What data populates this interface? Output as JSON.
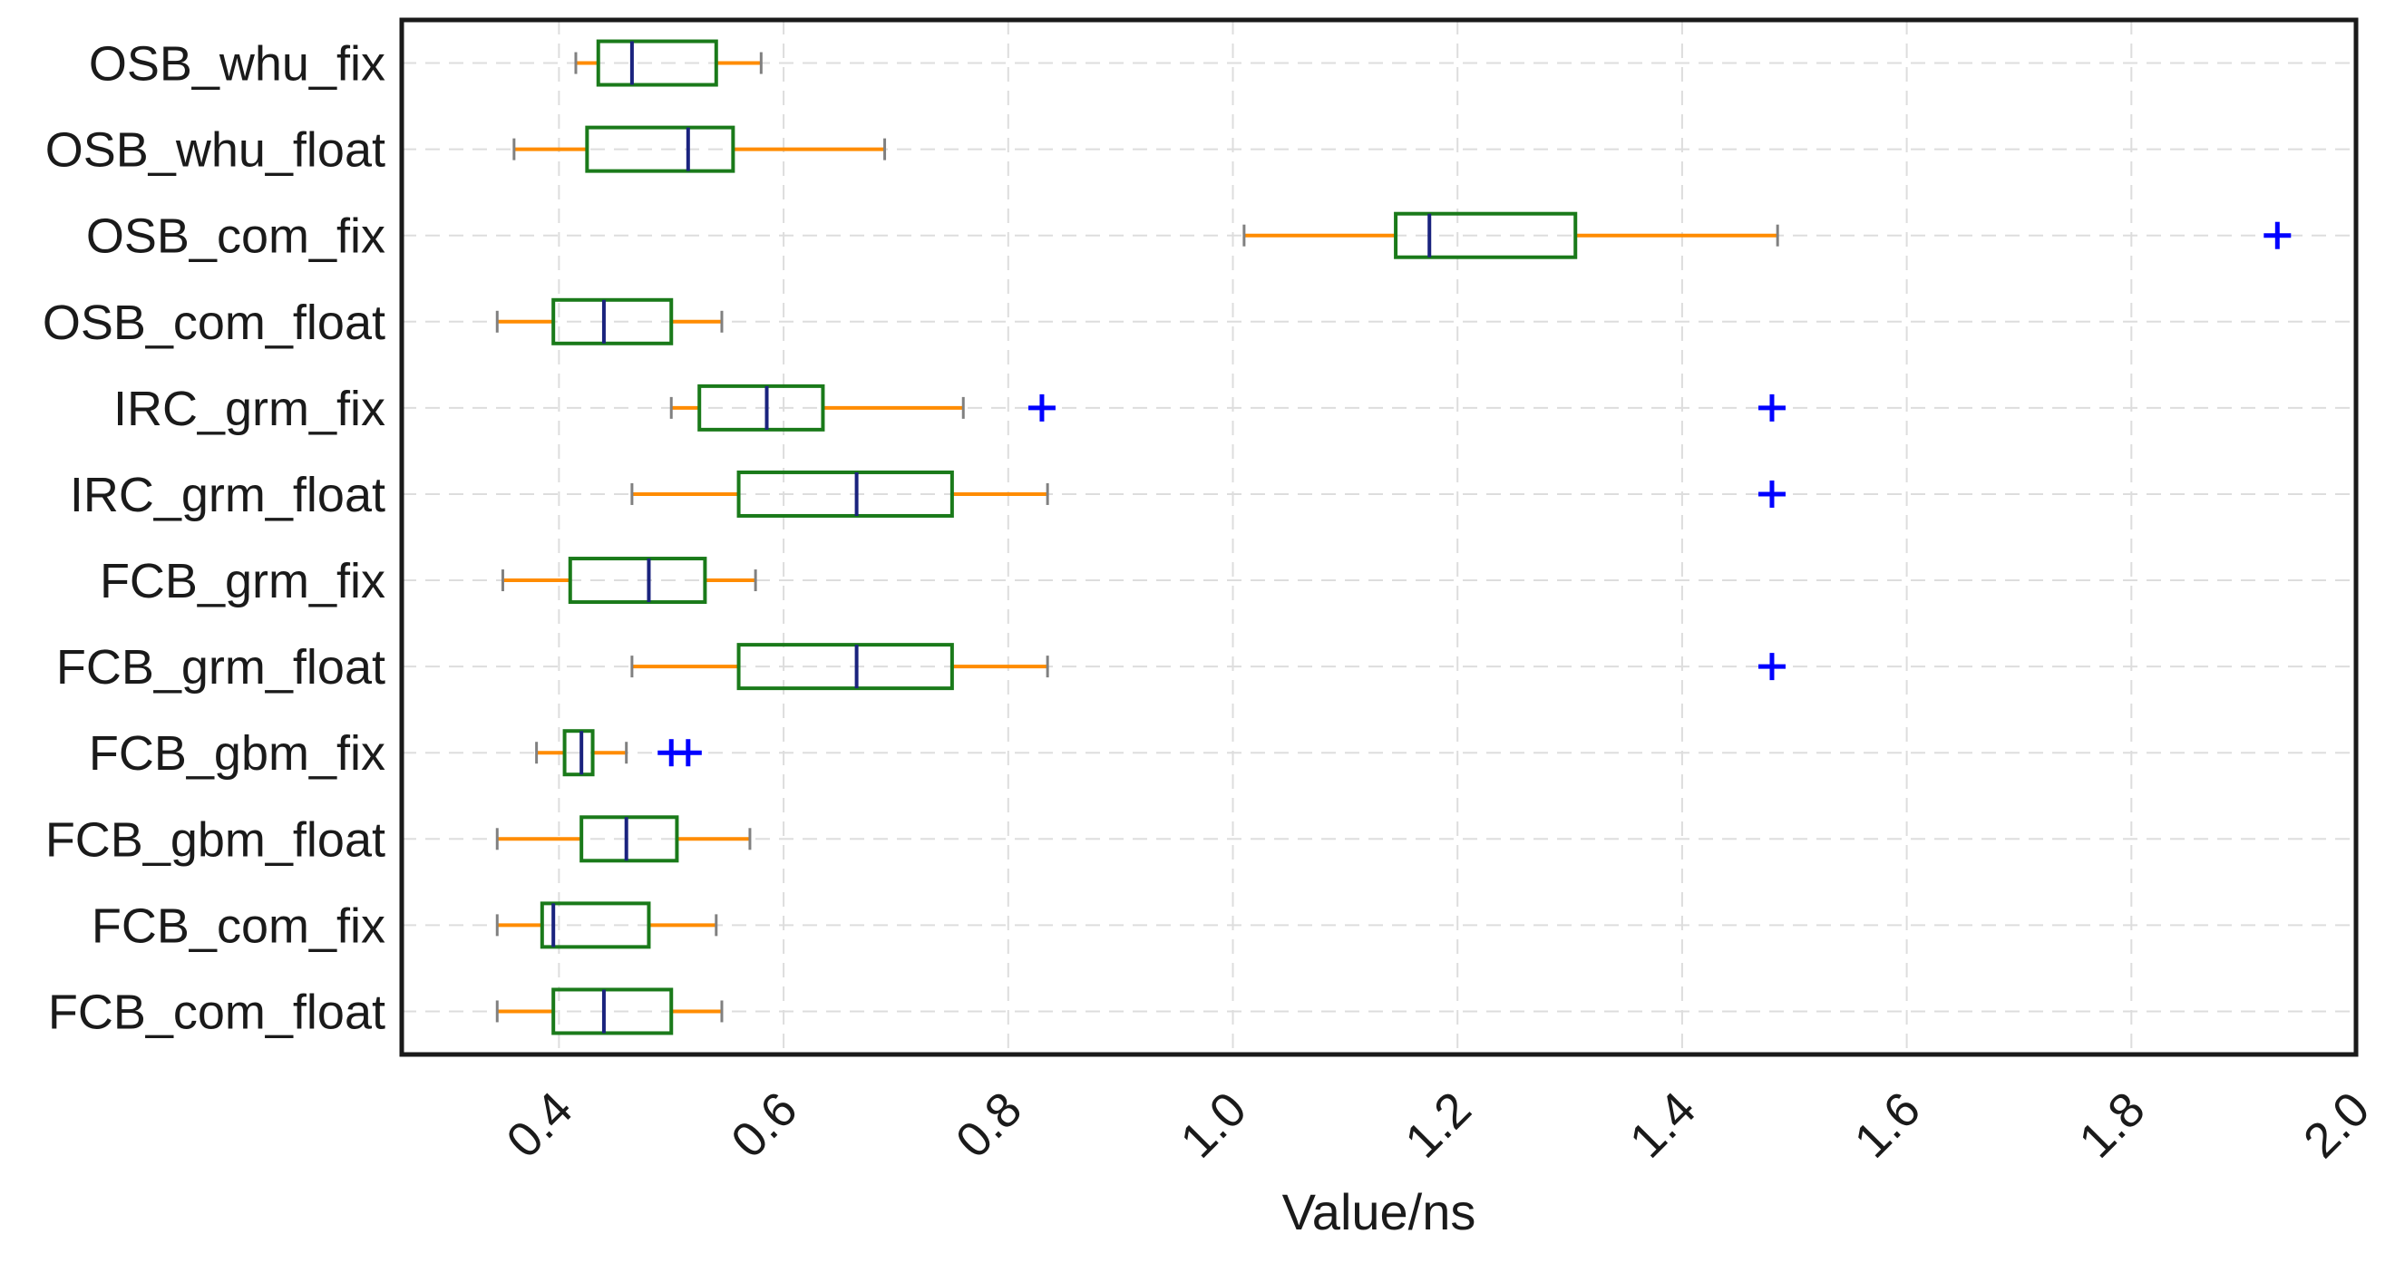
{
  "chart_data": {
    "type": "boxplot",
    "orientation": "horizontal",
    "title": "",
    "xlabel": "Value/ns",
    "ylabel": "",
    "xlim": [
      0.26,
      2.0
    ],
    "xticks": [
      0.4,
      0.6,
      0.8,
      1.0,
      1.2,
      1.4,
      1.6,
      1.8,
      2.0
    ],
    "xtick_labels": [
      "0.4",
      "0.6",
      "0.8",
      "1.0",
      "1.2",
      "1.4",
      "1.6",
      "1.8",
      "2.0"
    ],
    "grid": true,
    "colors": {
      "box": "#1a7a1a",
      "whisker": "#ff8c00",
      "cap": "#808080",
      "median": "#1a237e",
      "outlier": "#0000ff",
      "grid": "#dddddd",
      "frame": "#1a1a1a"
    },
    "categories": [
      "OSB_whu_fix",
      "OSB_whu_float",
      "OSB_com_fix",
      "OSB_com_float",
      "IRC_grm_fix",
      "IRC_grm_float",
      "FCB_grm_fix",
      "FCB_grm_float",
      "FCB_gbm_fix",
      "FCB_gbm_float",
      "FCB_com_fix",
      "FCB_com_float"
    ],
    "boxes": [
      {
        "label": "OSB_whu_fix",
        "whisker_low": 0.415,
        "q1": 0.435,
        "median": 0.465,
        "q3": 0.54,
        "whisker_high": 0.58,
        "outliers": []
      },
      {
        "label": "OSB_whu_float",
        "whisker_low": 0.36,
        "q1": 0.425,
        "median": 0.515,
        "q3": 0.555,
        "whisker_high": 0.69,
        "outliers": []
      },
      {
        "label": "OSB_com_fix",
        "whisker_low": 1.01,
        "q1": 1.145,
        "median": 1.175,
        "q3": 1.305,
        "whisker_high": 1.485,
        "outliers": [
          1.93
        ]
      },
      {
        "label": "OSB_com_float",
        "whisker_low": 0.345,
        "q1": 0.395,
        "median": 0.44,
        "q3": 0.5,
        "whisker_high": 0.545,
        "outliers": []
      },
      {
        "label": "IRC_grm_fix",
        "whisker_low": 0.5,
        "q1": 0.525,
        "median": 0.585,
        "q3": 0.635,
        "whisker_high": 0.76,
        "outliers": [
          0.83,
          1.48
        ]
      },
      {
        "label": "IRC_grm_float",
        "whisker_low": 0.465,
        "q1": 0.56,
        "median": 0.665,
        "q3": 0.75,
        "whisker_high": 0.835,
        "outliers": [
          1.48
        ]
      },
      {
        "label": "FCB_grm_fix",
        "whisker_low": 0.35,
        "q1": 0.41,
        "median": 0.48,
        "q3": 0.53,
        "whisker_high": 0.575,
        "outliers": []
      },
      {
        "label": "FCB_grm_float",
        "whisker_low": 0.465,
        "q1": 0.56,
        "median": 0.665,
        "q3": 0.75,
        "whisker_high": 0.835,
        "outliers": [
          1.48
        ]
      },
      {
        "label": "FCB_gbm_fix",
        "whisker_low": 0.38,
        "q1": 0.405,
        "median": 0.42,
        "q3": 0.43,
        "whisker_high": 0.46,
        "outliers": [
          0.5,
          0.515
        ]
      },
      {
        "label": "FCB_gbm_float",
        "whisker_low": 0.345,
        "q1": 0.42,
        "median": 0.46,
        "q3": 0.505,
        "whisker_high": 0.57,
        "outliers": []
      },
      {
        "label": "FCB_com_fix",
        "whisker_low": 0.345,
        "q1": 0.385,
        "median": 0.395,
        "q3": 0.48,
        "whisker_high": 0.54,
        "outliers": []
      },
      {
        "label": "FCB_com_float",
        "whisker_low": 0.345,
        "q1": 0.395,
        "median": 0.44,
        "q3": 0.5,
        "whisker_high": 0.545,
        "outliers": []
      }
    ]
  }
}
